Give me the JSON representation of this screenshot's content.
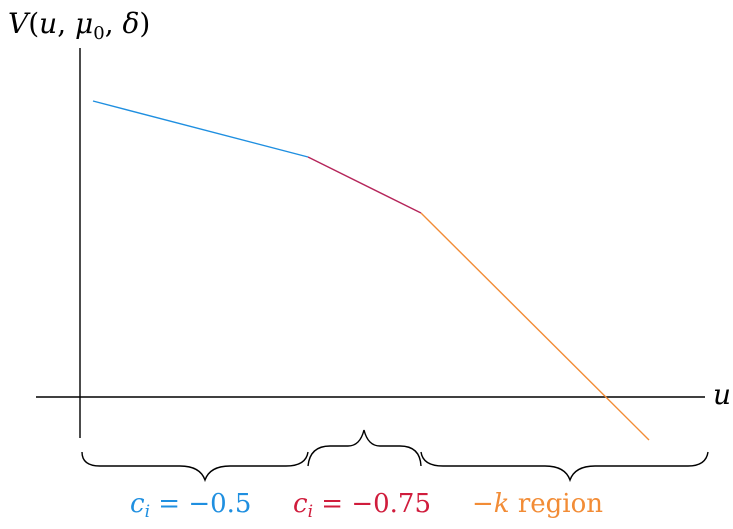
{
  "axes": {
    "y_label": "V(u, μ₀, δ)",
    "x_label": "u"
  },
  "segments": [
    {
      "name": "segment-ci-0.5",
      "color": "#1f8fe0"
    },
    {
      "name": "segment-ci-0.75",
      "color": "#b5255a"
    },
    {
      "name": "segment-k-region",
      "color": "#f28c36"
    }
  ],
  "braces": {
    "labels": [
      {
        "text": "c_i = −0.5",
        "color": "#1f8fe0"
      },
      {
        "text": "c_i = −0.75",
        "color": "#d01c3c"
      },
      {
        "text": "−k region",
        "color": "#f28c36"
      }
    ]
  }
}
